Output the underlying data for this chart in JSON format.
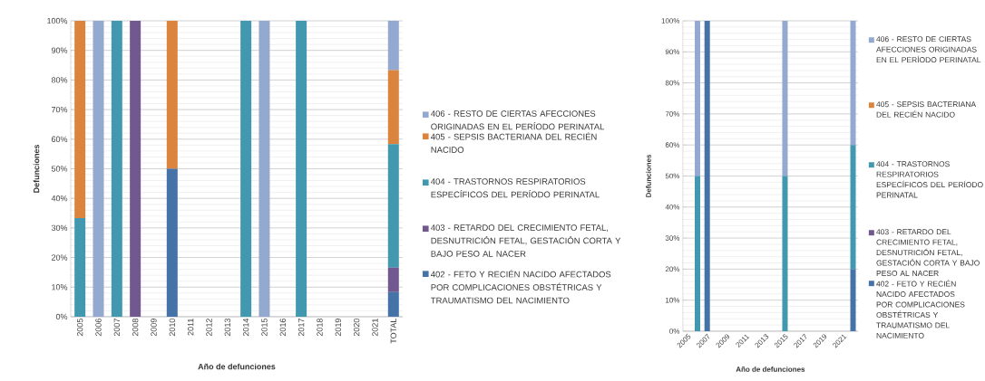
{
  "chart_data": [
    {
      "type": "bar",
      "stacked": true,
      "xlabel": "Año de defunciones",
      "ylabel": "Defunciones",
      "categories": [
        "2005",
        "2006",
        "2007",
        "2008",
        "2009",
        "2010",
        "2011",
        "2012",
        "2013",
        "2014",
        "2015",
        "2016",
        "2017",
        "2018",
        "2019",
        "2020",
        "2021",
        "TOTAL"
      ],
      "series": [
        {
          "name": "402 - FETO Y RECIÉN NACIDO AFECTADOS POR COMPLICACIONES OBSTÉTRICAS Y TRAUMATISMO DEL NACIMIENTO",
          "color": "#4572a7",
          "values": [
            0,
            0,
            0,
            0,
            0,
            50,
            0,
            0,
            0,
            0,
            0,
            0,
            0,
            0,
            0,
            0,
            0,
            8.3
          ]
        },
        {
          "name": "403 - RETARDO DEL CRECIMIENTO FETAL, DESNUTRICIÓN FETAL, GESTACIÓN CORTA Y BAJO PESO AL NACER",
          "color": "#71588f",
          "values": [
            0,
            0,
            0,
            100,
            0,
            0,
            0,
            0,
            0,
            0,
            0,
            0,
            0,
            0,
            0,
            0,
            0,
            8.3
          ]
        },
        {
          "name": "404 - TRASTORNOS RESPIRATORIOS ESPECÍFICOS DEL PERÍODO PERINATAL",
          "color": "#4198af",
          "values": [
            33.3,
            0,
            100,
            0,
            0,
            0,
            0,
            0,
            0,
            100,
            0,
            0,
            100,
            0,
            0,
            0,
            0,
            41.7
          ]
        },
        {
          "name": "405 - SEPSIS BACTERIANA DEL RECIÉN NACIDO",
          "color": "#db843d",
          "values": [
            66.7,
            0,
            0,
            0,
            0,
            50,
            0,
            0,
            0,
            0,
            0,
            0,
            0,
            0,
            0,
            0,
            0,
            25
          ]
        },
        {
          "name": "406 - RESTO DE CIERTAS AFECCIONES ORIGINADAS EN EL PERÍODO PERINATAL",
          "color": "#93a9cf",
          "values": [
            0,
            100,
            0,
            0,
            0,
            0,
            0,
            0,
            0,
            0,
            100,
            0,
            0,
            0,
            0,
            0,
            0,
            16.7
          ]
        }
      ],
      "ylim": [
        0,
        100
      ],
      "yticks": [
        {
          "value": 0,
          "label": "0%"
        },
        {
          "value": 10,
          "label": "10%"
        },
        {
          "value": 20,
          "label": "20%"
        },
        {
          "value": 30,
          "label": "30%"
        },
        {
          "value": 40,
          "label": "40%"
        },
        {
          "value": 50,
          "label": "50%"
        },
        {
          "value": 60,
          "label": "60%"
        },
        {
          "value": 70,
          "label": "70%"
        },
        {
          "value": 80,
          "label": "80%"
        },
        {
          "value": 90,
          "label": "90%"
        },
        {
          "value": 100,
          "label": "100%"
        }
      ],
      "grid": "y",
      "legend": "right"
    },
    {
      "type": "bar",
      "stacked": true,
      "xlabel": "Año de defunciones",
      "ylabel": "Defunciones",
      "categories": [
        "2005",
        null,
        "2007",
        null,
        "2009",
        null,
        "2011",
        null,
        "2013",
        null,
        "2015",
        null,
        "2017",
        null,
        "2019",
        null,
        "2021",
        null
      ],
      "series": [
        {
          "name": "402 - FETO Y RECIÉN NACIDO AFECTADOS POR COMPLICACIONES OBSTÉTRICAS Y TRAUMATISMO DEL NACIMIENTO",
          "color": "#4572a7",
          "values": [
            0,
            0,
            100,
            0,
            0,
            0,
            0,
            0,
            0,
            0,
            0,
            0,
            0,
            0,
            0,
            0,
            0,
            20
          ]
        },
        {
          "name": "403 - RETARDO DEL CRECIMIENTO FETAL, DESNUTRICIÓN FETAL, GESTACIÓN CORTA Y BAJO PESO AL NACER",
          "color": "#71588f",
          "values": [
            0,
            0,
            0,
            0,
            0,
            0,
            0,
            0,
            0,
            0,
            0,
            0,
            0,
            0,
            0,
            0,
            0,
            0
          ]
        },
        {
          "name": "404 - TRASTORNOS RESPIRATORIOS ESPECÍFICOS DEL PERÍODO PERINATAL",
          "color": "#4198af",
          "values": [
            0,
            50,
            0,
            0,
            0,
            0,
            0,
            0,
            0,
            0,
            50,
            0,
            0,
            0,
            0,
            0,
            0,
            40
          ]
        },
        {
          "name": "405 - SEPSIS BACTERIANA DEL RECIÉN NACIDO",
          "color": "#db843d",
          "values": [
            0,
            0,
            0,
            0,
            0,
            0,
            0,
            0,
            0,
            0,
            0,
            0,
            0,
            0,
            0,
            0,
            0,
            0
          ]
        },
        {
          "name": "406 - RESTO DE CIERTAS AFECCIONES ORIGINADAS EN EL PERÍODO PERINATAL",
          "color": "#93a9cf",
          "values": [
            0,
            50,
            0,
            0,
            0,
            0,
            0,
            0,
            0,
            0,
            50,
            0,
            0,
            0,
            0,
            0,
            0,
            40
          ]
        }
      ],
      "ylim": [
        0,
        100
      ],
      "yticks": [
        {
          "value": 0,
          "label": "0%"
        },
        {
          "value": 10,
          "label": "10%"
        },
        {
          "value": 20,
          "label": "20%"
        },
        {
          "value": 30,
          "label": "30%"
        },
        {
          "value": 40,
          "label": "40%"
        },
        {
          "value": 50,
          "label": "50%"
        },
        {
          "value": 60,
          "label": "60%"
        },
        {
          "value": 70,
          "label": "70%"
        },
        {
          "value": 80,
          "label": "80%"
        },
        {
          "value": 90,
          "label": "90%"
        },
        {
          "value": 100,
          "label": "100%"
        }
      ],
      "grid": "y",
      "legend": "right"
    }
  ]
}
